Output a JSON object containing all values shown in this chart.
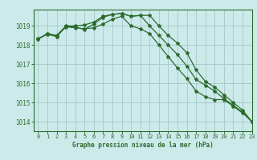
{
  "background_color": "#cceaea",
  "grid_color": "#aacccc",
  "line_color": "#2d6b2d",
  "title": "Graphe pression niveau de la mer (hPa)",
  "xlim": [
    -0.5,
    23
  ],
  "ylim": [
    1013.5,
    1019.85
  ],
  "yticks": [
    1014,
    1015,
    1016,
    1017,
    1018,
    1019
  ],
  "xticks": [
    0,
    1,
    2,
    3,
    4,
    5,
    6,
    7,
    8,
    9,
    10,
    11,
    12,
    13,
    14,
    15,
    16,
    17,
    18,
    19,
    20,
    21,
    22,
    23
  ],
  "series1": [
    1018.3,
    1018.6,
    1018.5,
    1019.0,
    1019.0,
    1019.05,
    1019.2,
    1019.5,
    1019.6,
    1019.65,
    1019.5,
    1019.55,
    1019.55,
    1019.0,
    1018.5,
    1018.1,
    1017.6,
    1016.7,
    1016.1,
    1015.8,
    1015.4,
    1015.0,
    1014.6,
    1014.0
  ],
  "series2": [
    1018.3,
    1018.6,
    1018.45,
    1018.95,
    1018.9,
    1018.85,
    1018.9,
    1019.1,
    1019.35,
    1019.5,
    1019.0,
    1018.85,
    1018.6,
    1018.0,
    1017.4,
    1016.8,
    1016.25,
    1015.6,
    1015.3,
    1015.15,
    1015.15,
    1014.8,
    1014.45,
    1014.0
  ],
  "series3": [
    1018.35,
    1018.55,
    1018.45,
    1018.98,
    1018.93,
    1018.82,
    1019.1,
    1019.45,
    1019.6,
    1019.65,
    1019.5,
    1019.55,
    1019.0,
    1018.5,
    1018.0,
    1017.5,
    1016.9,
    1016.2,
    1015.9,
    1015.6,
    1015.2,
    1014.85,
    1014.5,
    1014.0
  ],
  "tick_fontsize": 5,
  "label_fontsize": 5.5
}
